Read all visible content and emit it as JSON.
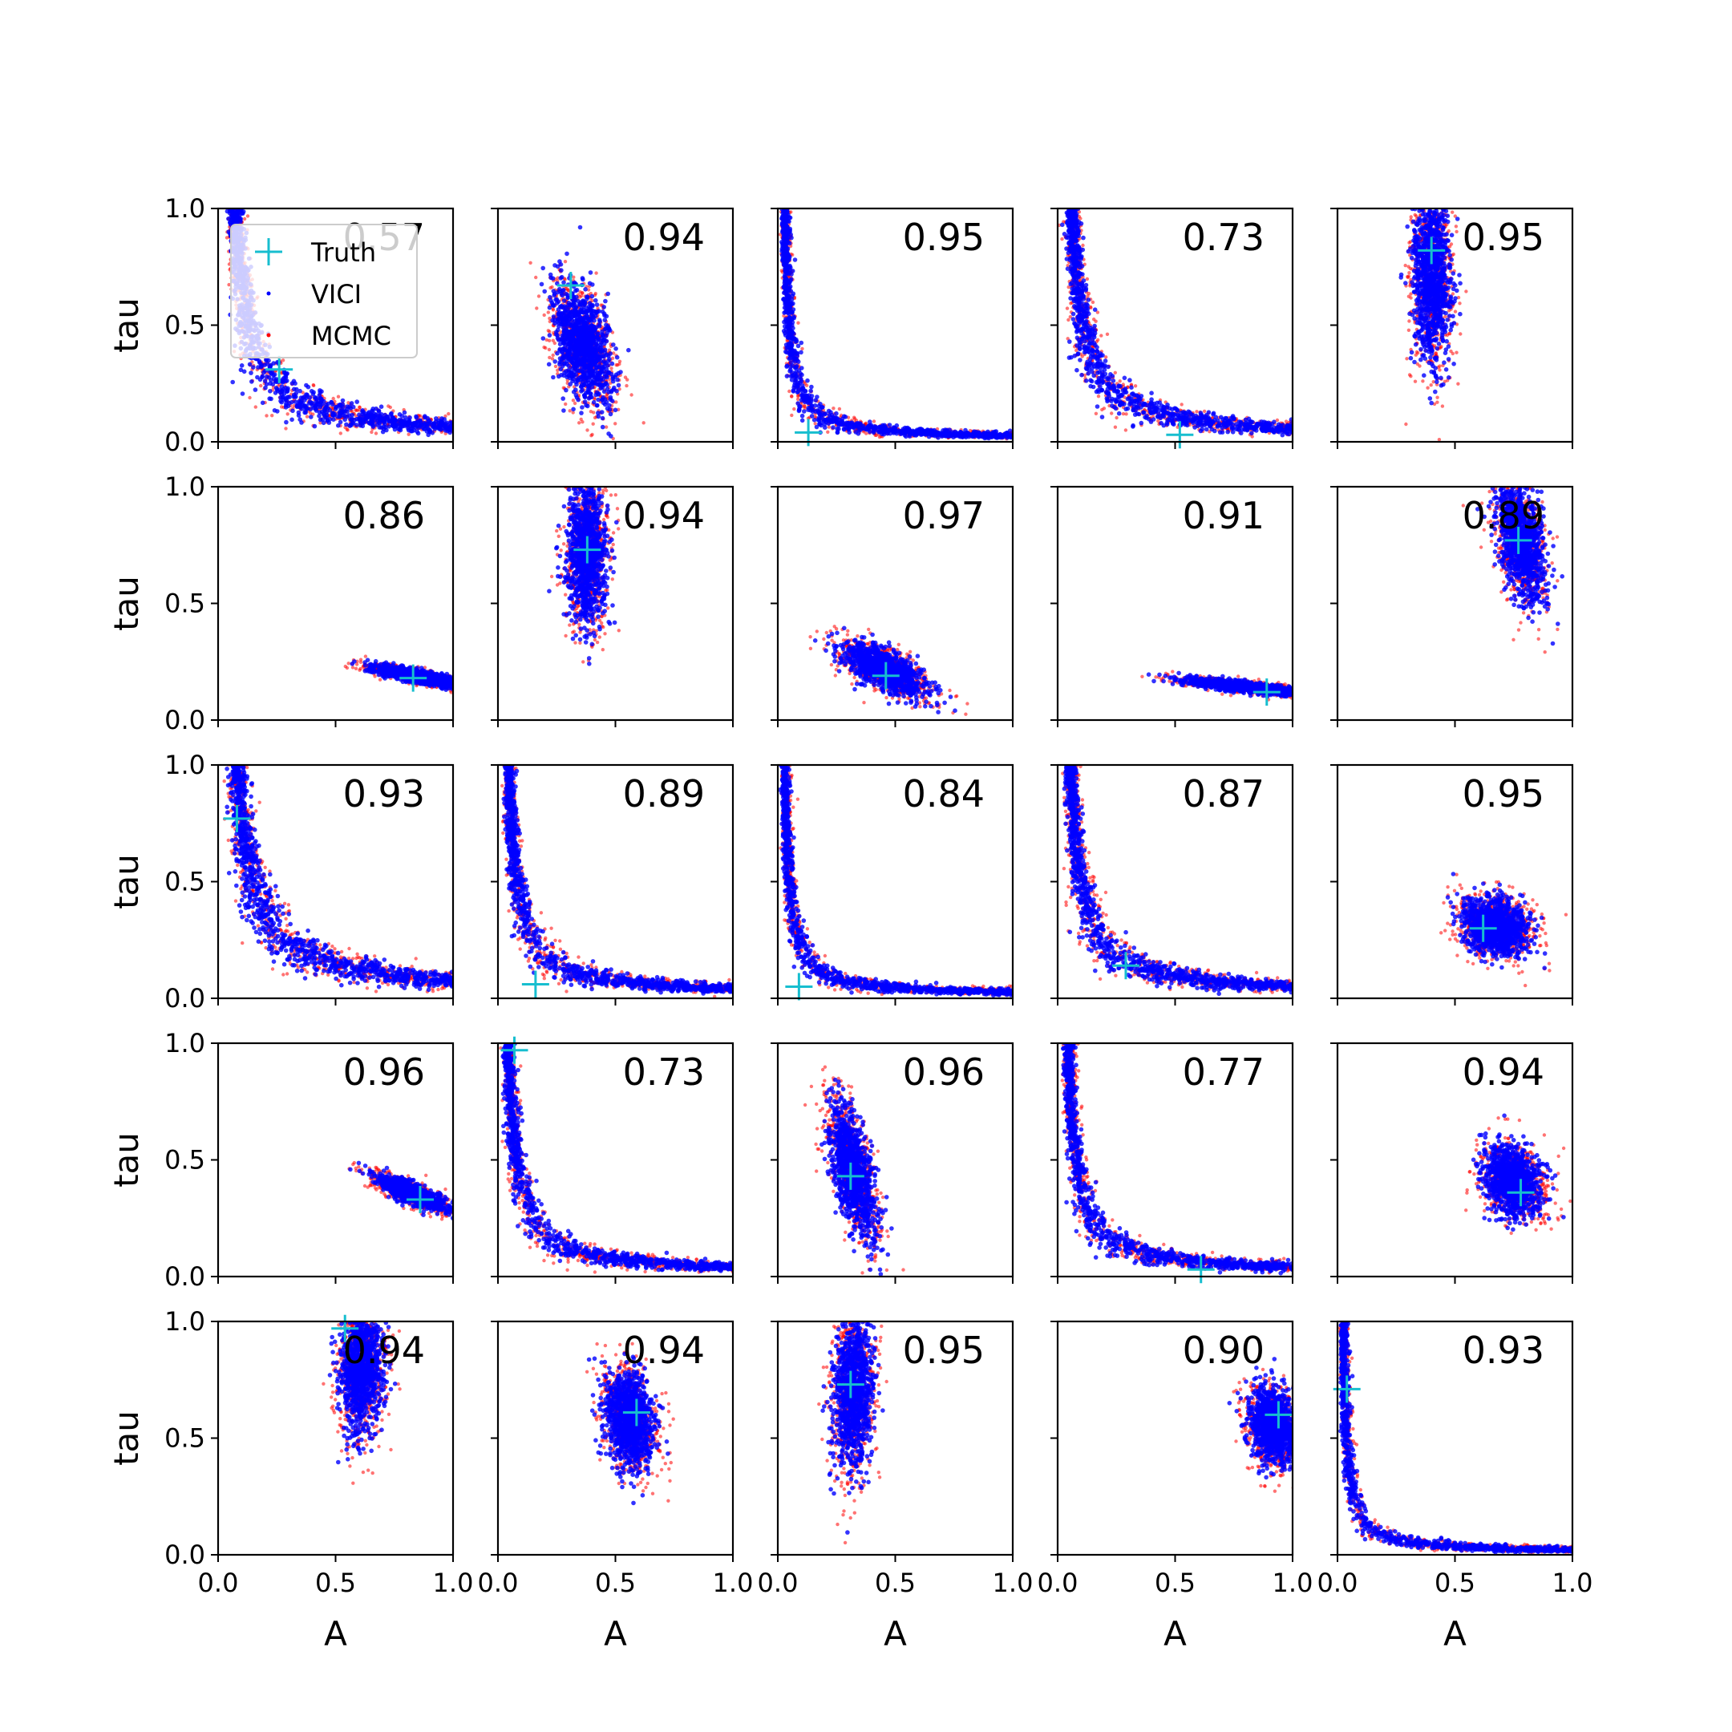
{
  "chart_data": {
    "type": "scatter",
    "grid": false,
    "legend": {
      "placement": "top-left of first panel",
      "entries": [
        {
          "label": "Truth",
          "marker": "plus",
          "color": "#17becf"
        },
        {
          "label": "VICI",
          "marker": "dot",
          "color": "#0000ff"
        },
        {
          "label": "MCMC",
          "marker": "dot",
          "color": "#ff0000"
        }
      ]
    },
    "xlabel": "A",
    "ylabel": "tau",
    "xlim": [
      0.0,
      1.0
    ],
    "ylim": [
      0.0,
      1.0
    ],
    "xticks": [
      "0.0",
      "0.5",
      "1.0"
    ],
    "yticks": [
      "0.0",
      "0.5",
      "1.0"
    ],
    "colors": {
      "vici": "#0000ff",
      "mcmc": "#ff0000",
      "truth": "#17becf"
    },
    "panels": [
      {
        "row": 0,
        "col": 0,
        "overlap": "0.57",
        "truth": [
          0.26,
          0.31
        ],
        "shape": "curve",
        "c": 0.06
      },
      {
        "row": 0,
        "col": 1,
        "overlap": "0.94",
        "truth": [
          0.31,
          0.67
        ],
        "shape": "blob",
        "center": [
          0.36,
          0.42
        ],
        "sd": [
          0.06,
          0.12
        ],
        "rho": -0.4
      },
      {
        "row": 0,
        "col": 2,
        "overlap": "0.95",
        "truth": [
          0.13,
          0.04
        ],
        "shape": "curve",
        "c": 0.02
      },
      {
        "row": 0,
        "col": 3,
        "overlap": "0.73",
        "truth": [
          0.52,
          0.03
        ],
        "shape": "curve",
        "c": 0.05
      },
      {
        "row": 0,
        "col": 4,
        "overlap": "0.95",
        "truth": [
          0.4,
          0.82
        ],
        "shape": "blob",
        "center": [
          0.4,
          0.72
        ],
        "sd": [
          0.04,
          0.18
        ],
        "rho": -0.1
      },
      {
        "row": 1,
        "col": 0,
        "overlap": "0.86",
        "truth": [
          0.83,
          0.18
        ],
        "shape": "blob",
        "center": [
          0.84,
          0.19
        ],
        "sd": [
          0.09,
          0.022
        ],
        "rho": -0.8
      },
      {
        "row": 1,
        "col": 1,
        "overlap": "0.94",
        "truth": [
          0.38,
          0.73
        ],
        "shape": "blob",
        "center": [
          0.38,
          0.72
        ],
        "sd": [
          0.04,
          0.15
        ],
        "rho": 0.0
      },
      {
        "row": 1,
        "col": 2,
        "overlap": "0.97",
        "truth": [
          0.46,
          0.19
        ],
        "shape": "blob",
        "center": [
          0.45,
          0.22
        ],
        "sd": [
          0.09,
          0.055
        ],
        "rho": -0.7
      },
      {
        "row": 1,
        "col": 3,
        "overlap": "0.91",
        "truth": [
          0.89,
          0.12
        ],
        "shape": "blob",
        "center": [
          0.82,
          0.14
        ],
        "sd": [
          0.13,
          0.018
        ],
        "rho": -0.8
      },
      {
        "row": 1,
        "col": 4,
        "overlap": "0.89",
        "truth": [
          0.77,
          0.77
        ],
        "shape": "blob",
        "center": [
          0.78,
          0.77
        ],
        "sd": [
          0.05,
          0.12
        ],
        "rho": -0.4
      },
      {
        "row": 2,
        "col": 0,
        "overlap": "0.93",
        "truth": [
          0.08,
          0.77
        ],
        "shape": "curve",
        "c": 0.07
      },
      {
        "row": 2,
        "col": 1,
        "overlap": "0.89",
        "truth": [
          0.16,
          0.06
        ],
        "shape": "curve",
        "c": 0.035
      },
      {
        "row": 2,
        "col": 2,
        "overlap": "0.84",
        "truth": [
          0.09,
          0.05
        ],
        "shape": "curve",
        "c": 0.02
      },
      {
        "row": 2,
        "col": 3,
        "overlap": "0.87",
        "truth": [
          0.29,
          0.14
        ],
        "shape": "curve",
        "c": 0.045
      },
      {
        "row": 2,
        "col": 4,
        "overlap": "0.95",
        "truth": [
          0.62,
          0.3
        ],
        "shape": "blob",
        "center": [
          0.67,
          0.31
        ],
        "sd": [
          0.07,
          0.06
        ],
        "rho": -0.2
      },
      {
        "row": 3,
        "col": 0,
        "overlap": "0.96",
        "truth": [
          0.86,
          0.33
        ],
        "shape": "blob",
        "center": [
          0.82,
          0.36
        ],
        "sd": [
          0.07,
          0.035
        ],
        "rho": -0.8
      },
      {
        "row": 3,
        "col": 1,
        "overlap": "0.73",
        "truth": [
          0.07,
          0.97
        ],
        "shape": "curve",
        "c": 0.035
      },
      {
        "row": 3,
        "col": 2,
        "overlap": "0.96",
        "truth": [
          0.31,
          0.43
        ],
        "shape": "blob",
        "center": [
          0.32,
          0.45
        ],
        "sd": [
          0.05,
          0.14
        ],
        "rho": -0.6
      },
      {
        "row": 3,
        "col": 3,
        "overlap": "0.77",
        "truth": [
          0.61,
          0.03
        ],
        "shape": "curve",
        "c": 0.035
      },
      {
        "row": 3,
        "col": 4,
        "overlap": "0.94",
        "truth": [
          0.78,
          0.36
        ],
        "shape": "blob",
        "center": [
          0.75,
          0.41
        ],
        "sd": [
          0.06,
          0.07
        ],
        "rho": -0.2
      },
      {
        "row": 4,
        "col": 0,
        "overlap": "0.94",
        "truth": [
          0.54,
          0.97
        ],
        "shape": "blob",
        "center": [
          0.61,
          0.8
        ],
        "sd": [
          0.045,
          0.13
        ],
        "rho": 0.1
      },
      {
        "row": 4,
        "col": 1,
        "overlap": "0.94",
        "truth": [
          0.59,
          0.61
        ],
        "shape": "blob",
        "center": [
          0.56,
          0.58
        ],
        "sd": [
          0.05,
          0.1
        ],
        "rho": -0.2
      },
      {
        "row": 4,
        "col": 2,
        "overlap": "0.95",
        "truth": [
          0.31,
          0.73
        ],
        "shape": "blob",
        "center": [
          0.32,
          0.7
        ],
        "sd": [
          0.04,
          0.16
        ],
        "rho": 0.1
      },
      {
        "row": 4,
        "col": 3,
        "overlap": "0.90",
        "truth": [
          0.94,
          0.6
        ],
        "shape": "blob",
        "center": [
          0.92,
          0.55
        ],
        "sd": [
          0.05,
          0.08
        ],
        "rho": -0.2
      },
      {
        "row": 4,
        "col": 4,
        "overlap": "0.93",
        "truth": [
          0.04,
          0.71
        ],
        "shape": "curve",
        "c": 0.015
      }
    ]
  }
}
